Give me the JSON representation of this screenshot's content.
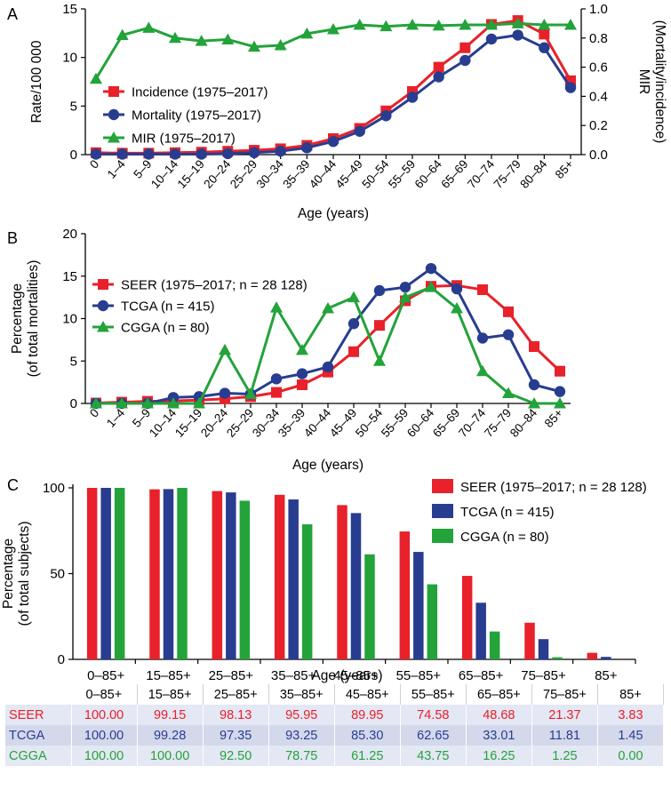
{
  "colors": {
    "red": "#e8212a",
    "blue": "#283d8f",
    "green": "#23a33a",
    "axis": "#000000"
  },
  "chart_data": [
    {
      "panel": "A",
      "type": "line",
      "categories": [
        "0",
        "1–4",
        "5–9",
        "10–14",
        "15–19",
        "20–24",
        "25–29",
        "30–34",
        "35–39",
        "40–44",
        "45–49",
        "50–54",
        "55–59",
        "60–64",
        "65–69",
        "70–74",
        "75–79",
        "80–84",
        "85+"
      ],
      "series": [
        {
          "name": "Incidence (1975–2017)",
          "axis": "left",
          "color": "red",
          "marker": "square",
          "values": [
            0.2,
            0.15,
            0.15,
            0.2,
            0.25,
            0.35,
            0.45,
            0.6,
            0.95,
            1.65,
            2.7,
            4.5,
            6.5,
            9.0,
            11.0,
            13.4,
            13.8,
            12.4,
            7.6
          ]
        },
        {
          "name": "Mortality (1975–2017)",
          "axis": "left",
          "color": "blue",
          "marker": "circle",
          "values": [
            0.05,
            0.05,
            0.05,
            0.05,
            0.05,
            0.1,
            0.2,
            0.35,
            0.7,
            1.35,
            2.4,
            4.0,
            5.9,
            8.0,
            9.7,
            11.9,
            12.3,
            11.0,
            6.9
          ]
        },
        {
          "name": "MIR (1975–2017)",
          "axis": "right",
          "color": "green",
          "marker": "triangle",
          "values": [
            0.52,
            0.82,
            0.87,
            0.8,
            0.78,
            0.79,
            0.74,
            0.75,
            0.83,
            0.86,
            0.89,
            0.88,
            0.89,
            0.885,
            0.89,
            0.89,
            0.9,
            0.89,
            0.89
          ]
        }
      ],
      "title": "",
      "panel_label": "A",
      "xlabel": "Age (years)",
      "ylabel": "Rate/100 000",
      "ylabel2": [
        "MIR",
        "(Mortality/incidence)"
      ],
      "ylim": [
        0,
        15
      ],
      "yticks": [
        "0",
        "5",
        "10",
        "15"
      ],
      "y2lim": [
        0,
        1.0
      ],
      "y2ticks": [
        "0.0",
        "0.2",
        "0.4",
        "0.6",
        "0.8",
        "1.0"
      ],
      "legend": "center-left"
    },
    {
      "panel": "B",
      "type": "line",
      "categories": [
        "0",
        "1–4",
        "5–9",
        "10–14",
        "15–19",
        "20–24",
        "25–29",
        "30–34",
        "35–39",
        "40–44",
        "45–49",
        "50–54",
        "55–59",
        "60–64",
        "65–69",
        "70–74",
        "75–79",
        "80–84",
        "85+"
      ],
      "series": [
        {
          "name": "SEER (1975–2017; n = 28 128)",
          "color": "red",
          "marker": "square",
          "values": [
            0.05,
            0.15,
            0.25,
            0.3,
            0.4,
            0.55,
            0.8,
            1.3,
            2.2,
            3.7,
            6.1,
            9.2,
            12.1,
            13.8,
            13.9,
            13.4,
            10.8,
            6.7,
            3.8
          ]
        },
        {
          "name": "TCGA (n = 415)",
          "color": "blue",
          "marker": "circle",
          "values": [
            0,
            0,
            0,
            0.7,
            0.8,
            1.2,
            1.1,
            2.9,
            3.5,
            4.3,
            9.4,
            13.3,
            13.7,
            15.9,
            13.5,
            7.7,
            8.1,
            2.2,
            1.4
          ]
        },
        {
          "name": "CGGA (n = 80)",
          "color": "green",
          "marker": "triangle",
          "values": [
            0,
            0,
            0,
            0,
            0,
            6.3,
            1.1,
            11.3,
            6.3,
            11.2,
            12.5,
            5.0,
            12.5,
            13.7,
            11.2,
            3.8,
            1.2,
            0,
            0
          ]
        }
      ],
      "title": "",
      "panel_label": "B",
      "xlabel": "Age (years)",
      "ylabel": [
        "Percentage",
        "(of total mortalities)"
      ],
      "ylim": [
        0,
        20
      ],
      "yticks": [
        "0",
        "5",
        "10",
        "15",
        "20"
      ],
      "legend": "top-left"
    },
    {
      "panel": "C",
      "type": "bar",
      "categories": [
        "0–85+",
        "15–85+",
        "25–85+",
        "35–85+",
        "45–85+",
        "55–85+",
        "65–85+",
        "75–85+",
        "85+"
      ],
      "series": [
        {
          "name": "SEER (1975–2017; n = 28 128)",
          "color": "red",
          "values": [
            100.0,
            99.15,
            98.13,
            95.95,
            89.95,
            74.58,
            48.68,
            21.37,
            3.83
          ]
        },
        {
          "name": "TCGA (n = 415)",
          "color": "blue",
          "values": [
            100.0,
            99.28,
            97.35,
            93.25,
            85.3,
            62.65,
            33.01,
            11.81,
            1.45
          ]
        },
        {
          "name": "CGGA (n = 80)",
          "color": "green",
          "values": [
            100.0,
            100.0,
            92.5,
            78.75,
            61.25,
            43.75,
            16.25,
            1.25,
            0.0
          ]
        }
      ],
      "title": "",
      "panel_label": "C",
      "xlabel": "Age (years)",
      "ylabel": [
        "Percentage",
        "(of total subjects)"
      ],
      "ylim": [
        0,
        100
      ],
      "yticks": [
        "0",
        "50",
        "100"
      ],
      "legend": "top-right"
    }
  ],
  "table": {
    "columns": [
      "0–85+",
      "15–85+",
      "25–85+",
      "35–85+",
      "45–85+",
      "55–85+",
      "65–85+",
      "75–85+",
      "85+"
    ],
    "rows": [
      {
        "label": "SEER",
        "color": "red",
        "cells": [
          "100.00",
          "99.15",
          "98.13",
          "95.95",
          "89.95",
          "74.58",
          "48.68",
          "21.37",
          "3.83"
        ]
      },
      {
        "label": "TCGA",
        "color": "blue",
        "cells": [
          "100.00",
          "99.28",
          "97.35",
          "93.25",
          "85.30",
          "62.65",
          "33.01",
          "11.81",
          "1.45"
        ]
      },
      {
        "label": "CGGA",
        "color": "green",
        "cells": [
          "100.00",
          "100.00",
          "92.50",
          "78.75",
          "61.25",
          "43.75",
          "16.25",
          "1.25",
          "0.00"
        ]
      }
    ]
  }
}
